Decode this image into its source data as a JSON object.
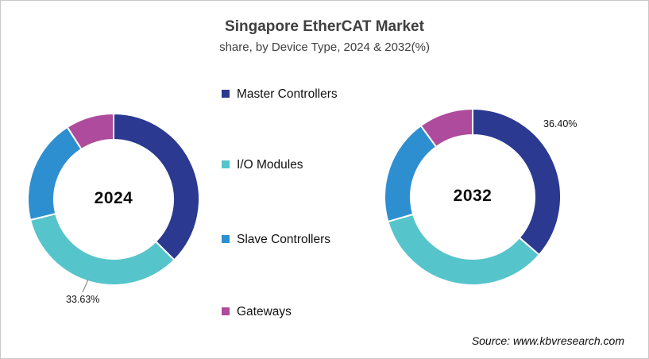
{
  "title": "Singapore EtherCAT Market",
  "subtitle": "share, by Device Type, 2024 & 2032(%)",
  "source": "Source: www.kbvresearch.com",
  "colors": {
    "master_controllers": "#2B3990",
    "io_modules": "#56C5CB",
    "slave_controllers": "#2E8FD0",
    "gateways": "#AE4B9C",
    "leader_line": "#7f7f7f",
    "title_text": "#3f3f3f",
    "border": "#c8c8c8"
  },
  "legend": [
    {
      "label": "Master Controllers",
      "color": "#2B3990"
    },
    {
      "label": "I/O Modules",
      "color": "#56C5CB"
    },
    {
      "label": "Slave Controllers",
      "color": "#2E8FD0"
    },
    {
      "label": "Gateways",
      "color": "#AE4B9C"
    }
  ],
  "chart_data": {
    "type": "pie",
    "subtype": "donut",
    "title": "Singapore EtherCAT Market share, by Device Type, 2024 & 2032(%)",
    "categories": [
      "Master Controllers",
      "I/O Modules",
      "Slave Controllers",
      "Gateways"
    ],
    "colors": [
      "#2B3990",
      "#56C5CB",
      "#2E8FD0",
      "#AE4B9C"
    ],
    "legend_position": "center-between-charts",
    "start_angle_deg": 0,
    "direction": "clockwise",
    "charts": [
      {
        "center_label": "2024",
        "values": [
          37.5,
          33.63,
          19.8,
          9.07
        ],
        "labeled_segment": "I/O Modules",
        "pct_label": {
          "text": "33.63%"
        }
      },
      {
        "center_label": "2032",
        "values": [
          36.4,
          34.1,
          19.5,
          10.0
        ],
        "labeled_segment": "Master Controllers",
        "pct_label": {
          "text": "36.40%"
        }
      }
    ],
    "annotations": [
      "33.63%",
      "36.40%"
    ]
  }
}
